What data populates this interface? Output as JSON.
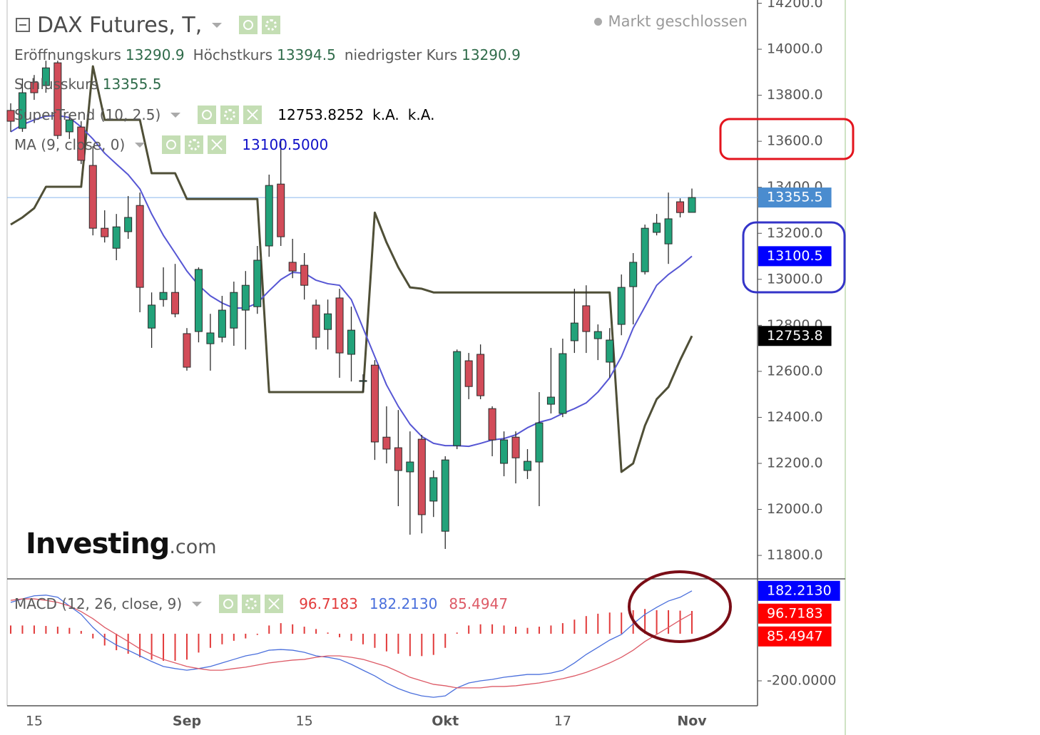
{
  "chart_data": [
    {
      "type": "candlestick",
      "title": "DAX Futures, T,",
      "status": "Markt geschlossen",
      "categories": [
        null,
        null,
        "15",
        null,
        null,
        null,
        null,
        null,
        null,
        null,
        null,
        null,
        null,
        null,
        null,
        "Sep",
        null,
        null,
        null,
        null,
        null,
        null,
        null,
        null,
        null,
        "15",
        null,
        null,
        null,
        null,
        null,
        null,
        null,
        null,
        null,
        null,
        null,
        "Okt",
        null,
        null,
        null,
        null,
        null,
        null,
        null,
        null,
        null,
        "17",
        null,
        null,
        null,
        null,
        null,
        null,
        null,
        null,
        null,
        null,
        "Nov"
      ],
      "open": [
        13734,
        13656,
        13857,
        13842,
        13941,
        13641,
        13662,
        13495,
        13222,
        13135,
        13207,
        13321,
        12788,
        12912,
        12943,
        12764,
        12773,
        12720,
        12748,
        12788,
        12866,
        12881,
        13145,
        13414,
        13074,
        13061,
        12888,
        12782,
        12919,
        12674,
        12556,
        12627,
        12314,
        12268,
        12163,
        12305,
        12036,
        11905,
        12277,
        12646,
        12674,
        12438,
        12200,
        12314,
        12169,
        12206,
        12457,
        12417,
        12733,
        12885,
        12742,
        12640,
        12804,
        12968,
        13033,
        13204,
        13154,
        13337,
        13290.9
      ],
      "high": [
        13765,
        13873,
        13888,
        13950,
        13950,
        13718,
        13687,
        13579,
        13300,
        13284,
        13362,
        13377,
        12943,
        13052,
        13067,
        12788,
        13052,
        12850,
        12928,
        12990,
        13036,
        13145,
        13455,
        13610,
        13176,
        13114,
        12912,
        12912,
        12959,
        12881,
        12587,
        12649,
        12448,
        12432,
        12339,
        12324,
        12169,
        12231,
        12695,
        12680,
        12717,
        12448,
        12339,
        12339,
        12262,
        12510,
        12702,
        12742,
        12959,
        12974,
        12804,
        12788,
        13021,
        13114,
        13238,
        13284,
        13377,
        13352,
        13394.5
      ],
      "low": [
        13641,
        13641,
        13780,
        13811,
        13610,
        13610,
        13501,
        13191,
        13160,
        13083,
        13176,
        12857,
        12702,
        12881,
        12835,
        12603,
        12726,
        12603,
        12726,
        12711,
        12695,
        12850,
        13098,
        13145,
        13005,
        12912,
        12695,
        12695,
        12572,
        12556,
        12510,
        12215,
        12200,
        12014,
        11890,
        11896,
        11967,
        11828,
        12262,
        12479,
        12479,
        12231,
        12144,
        12113,
        12132,
        12014,
        12417,
        12401,
        12680,
        12680,
        12649,
        12572,
        12757,
        12804,
        13021,
        13191,
        13067,
        13269,
        13290.9
      ],
      "close": [
        13687,
        13811,
        13811,
        13919,
        13625,
        13693,
        13517,
        13222,
        13185,
        13228,
        13269,
        12965,
        12888,
        12943,
        12850,
        12618,
        13043,
        12767,
        12866,
        12943,
        12974,
        13083,
        13408,
        13185,
        13036,
        12974,
        12748,
        12850,
        12680,
        12779,
        12560,
        12293,
        12262,
        12169,
        12206,
        11977,
        12138,
        12215,
        12686,
        12534,
        12494,
        12302,
        12302,
        12224,
        12209,
        12376,
        12488,
        12677,
        12810,
        12773,
        12773,
        12736,
        12965,
        13074,
        13222,
        13244,
        13263,
        13290,
        13355.5
      ],
      "up_color": "#22a27a",
      "down_color": "#d24c59",
      "ylim": [
        11698,
        14214
      ],
      "yticks": [
        {
          "value": 11800,
          "label": "11800.0"
        },
        {
          "value": 12000,
          "label": "12000.0"
        },
        {
          "value": 12200,
          "label": "12200.0"
        },
        {
          "value": 12400,
          "label": "12400.0"
        },
        {
          "value": 12600,
          "label": "12600.0"
        },
        {
          "value": 12800,
          "label": "12800.0"
        },
        {
          "value": 13000,
          "label": "13000.0"
        },
        {
          "value": 13200,
          "label": "13200.0"
        },
        {
          "value": 13400,
          "label": "13400.0"
        },
        {
          "value": 13600,
          "label": "13600.0"
        },
        {
          "value": 13800,
          "label": "13800.0"
        },
        {
          "value": 14000,
          "label": "14000.0"
        },
        {
          "value": 14200,
          "label": "14200.0"
        }
      ],
      "legend": [
        {
          "label": "Eröffnungskurs",
          "value": "13290.9"
        },
        {
          "label": "Höchstkurs",
          "value": "13394.5"
        },
        {
          "label": "niedrigster Kurs",
          "value": "13290.9"
        },
        {
          "label": "Schlusskurs",
          "value": "13355.5"
        }
      ],
      "indicators": [
        {
          "name": "SuperTrend (10, 2.5)",
          "color": "#4f4f37",
          "legend_color": "#000000",
          "legend_values": [
            "12753.8252",
            "k.A.",
            "k.A."
          ],
          "values": [
            13238,
            13269,
            13309,
            13402,
            13402,
            13402,
            13402,
            13926,
            13693,
            13693,
            13693,
            13693,
            13461,
            13461,
            13461,
            13349,
            13349,
            13349,
            13349,
            13349,
            13349,
            13349,
            12510,
            12510,
            12510,
            12510,
            12510,
            12510,
            12510,
            12510,
            12510,
            13290,
            13160,
            13052,
            12965,
            12959,
            12943,
            12943,
            12943,
            12943,
            12943,
            12943,
            12943,
            12943,
            12943,
            12943,
            12943,
            12943,
            12943,
            12943,
            12943,
            12943,
            12163,
            12200,
            12364,
            12479,
            12532,
            12649,
            12753.8252
          ]
        },
        {
          "name": "MA (9, close, 0)",
          "color": "#5656d4",
          "legend_color": "#1010c8",
          "legend_values": [
            "13100.5000"
          ],
          "values": [
            13641,
            13672,
            13693,
            13709,
            13712,
            13703,
            13662,
            13610,
            13548,
            13501,
            13455,
            13393,
            13284,
            13191,
            13114,
            13036,
            12974,
            12928,
            12897,
            12875,
            12875,
            12897,
            12950,
            12999,
            13030,
            13027,
            12996,
            12981,
            12974,
            12912,
            12788,
            12664,
            12541,
            12448,
            12370,
            12317,
            12287,
            12277,
            12277,
            12274,
            12287,
            12302,
            12308,
            12324,
            12355,
            12379,
            12392,
            12417,
            12438,
            12463,
            12510,
            12572,
            12664,
            12788,
            12881,
            12974,
            13021,
            13058,
            13100.5
          ]
        }
      ],
      "price_line": {
        "value": 13355.5,
        "color": "#8ab8ec"
      },
      "axis_markers": [
        {
          "value": 13355.5,
          "color": "#4a8ccf"
        },
        {
          "value": 13100.5,
          "color": "#0000ff"
        },
        {
          "value": 12753.8,
          "color": "#000000"
        }
      ],
      "watermark": {
        "brand": "Investing",
        "suffix": ".com"
      }
    },
    {
      "type": "macd",
      "name": "MACD (12, 26, close, 9)",
      "ylim": [
        -306,
        233
      ],
      "yticks": [
        {
          "value": -200,
          "label": "-200.0000"
        }
      ],
      "series": [
        {
          "style": "bar",
          "color": "#e23b3b",
          "legend_value": "96.7183",
          "values": [
            35,
            35,
            35,
            33,
            30,
            25,
            12,
            -20,
            -50,
            -70,
            -85,
            -100,
            -110,
            -115,
            -115,
            -110,
            -80,
            -60,
            -45,
            -30,
            -20,
            -5,
            35,
            45,
            40,
            30,
            20,
            5,
            -15,
            -30,
            -45,
            -60,
            -75,
            -85,
            -95,
            -95,
            -90,
            -60,
            5,
            35,
            40,
            40,
            35,
            30,
            25,
            30,
            35,
            45,
            60,
            75,
            85,
            90,
            90,
            100,
            105,
            100,
            100,
            98,
            96.7183
          ]
        },
        {
          "style": "line",
          "color": "#4a6fdc",
          "legend_value": "182.2130",
          "values": [
            133,
            148,
            161,
            164,
            155,
            118,
            82,
            27,
            -18,
            -48,
            -70,
            -94,
            -118,
            -139,
            -148,
            -155,
            -148,
            -139,
            -124,
            -109,
            -94,
            -85,
            -70,
            -67,
            -70,
            -79,
            -94,
            -100,
            -109,
            -130,
            -155,
            -179,
            -209,
            -233,
            -251,
            -264,
            -270,
            -264,
            -230,
            -209,
            -200,
            -194,
            -185,
            -179,
            -173,
            -173,
            -167,
            -155,
            -124,
            -88,
            -58,
            -27,
            -3,
            42,
            82,
            112,
            139,
            155,
            182.213
          ]
        },
        {
          "style": "line",
          "color": "#dd5a66",
          "legend_value": "85.4947",
          "values": [
            142,
            148,
            148,
            142,
            133,
            118,
            94,
            64,
            27,
            -3,
            -33,
            -64,
            -88,
            -109,
            -124,
            -139,
            -148,
            -155,
            -155,
            -148,
            -142,
            -133,
            -124,
            -118,
            -112,
            -109,
            -100,
            -94,
            -94,
            -100,
            -109,
            -124,
            -139,
            -161,
            -185,
            -200,
            -215,
            -221,
            -230,
            -230,
            -230,
            -224,
            -224,
            -221,
            -215,
            -209,
            -200,
            -191,
            -179,
            -164,
            -145,
            -124,
            -100,
            -70,
            -33,
            -3,
            27,
            58,
            85.4947
          ]
        }
      ],
      "axis_markers": [
        {
          "value": 182.213,
          "label": "182.2130",
          "color": "#0000ff"
        },
        {
          "value": 96.7183,
          "label": "96.7183",
          "color": "#ff0000"
        },
        {
          "value": 85.4947,
          "label": "85.4947",
          "color": "#ff0000"
        }
      ]
    }
  ]
}
